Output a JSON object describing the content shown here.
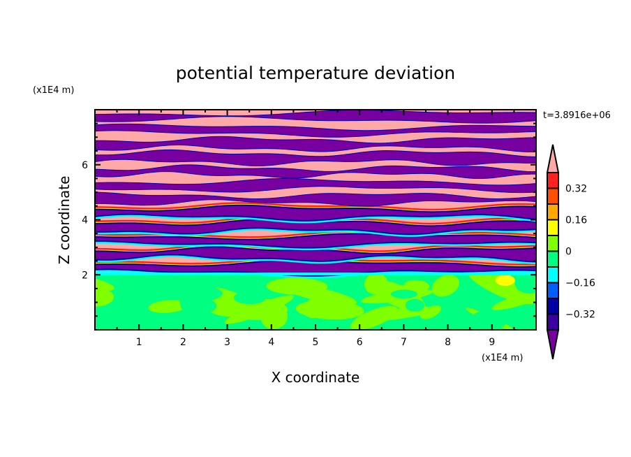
{
  "chart_data": {
    "type": "heatmap",
    "subtype": "filled-contour",
    "title": "potential temperature deviation",
    "xlabel": "X coordinate",
    "ylabel": "Z coordinate",
    "x_unit_label": "(x1E4 m)",
    "y_unit_label": "(x1E4 m)",
    "time_label": "t=3.8916e+06",
    "xlim": [
      0,
      10
    ],
    "ylim": [
      0,
      8
    ],
    "x_ticks": [
      1,
      2,
      3,
      4,
      5,
      6,
      7,
      8,
      9
    ],
    "y_ticks": [
      2,
      4,
      6
    ],
    "colorbar": {
      "levels": [
        -0.4,
        -0.32,
        -0.24,
        -0.16,
        -0.08,
        0,
        0.08,
        0.16,
        0.24,
        0.32,
        0.4
      ],
      "labels": [
        "0.32",
        "0.16",
        "0",
        "-0.16",
        "-0.32"
      ],
      "label_values": [
        0.32,
        0.16,
        0,
        -0.16,
        -0.32
      ],
      "colors": [
        "#3C00A0",
        "#0000A8",
        "#0060FF",
        "#00FFFF",
        "#00FF80",
        "#80FF00",
        "#FFFF00",
        "#FFA800",
        "#FF5000",
        "#FF2020"
      ],
      "under_color": "#7800A0",
      "over_color": "#FFA8A8",
      "extend": "both"
    },
    "field_description_regions": {
      "lower_layer_z": [
        0,
        2
      ],
      "lower_layer_values": "0 to 0.08 and -0.08 to 0 patches",
      "upper_layer_z": [
        2,
        8
      ],
      "upper_layer_values": "alternating bands above 0.4 and below -0.4"
    }
  }
}
